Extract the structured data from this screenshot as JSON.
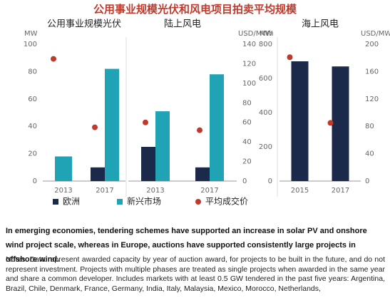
{
  "chart_data": {
    "type": "bar",
    "title": "公用事业规模光伏和风电项目拍卖平均规模",
    "series": [
      {
        "name": "欧洲",
        "color": "#1b2a4a",
        "kind": "bar"
      },
      {
        "name": "新兴市场",
        "color": "#1fa3b5",
        "kind": "bar"
      },
      {
        "name": "平均成交价",
        "color": "#c0392b",
        "kind": "dot",
        "axis": "y2"
      }
    ],
    "groups": [
      {
        "y_label": "MW",
        "ylim": [
          0,
          100
        ],
        "yticks": [
          0,
          20,
          40,
          60,
          80,
          100
        ],
        "y2_label": "USD/MWh",
        "y2lim": [
          0,
          140
        ],
        "y2ticks": [
          0,
          20,
          40,
          60,
          80,
          100,
          120,
          140
        ],
        "panels": [
          {
            "title": "公用事业规模光伏",
            "categories": [
              "2013",
              "2017"
            ],
            "values": [
              [
                null,
                10
              ],
              [
                18,
                82
              ],
              [
                125,
                55
              ]
            ]
          },
          {
            "title": "陆上风电",
            "categories": [
              "2013",
              "2017"
            ],
            "values": [
              [
                25,
                10
              ],
              [
                51,
                78
              ],
              [
                60,
                52
              ]
            ]
          }
        ]
      },
      {
        "y_label": "MW",
        "ylim": [
          0,
          800
        ],
        "yticks": [
          0,
          200,
          400,
          600,
          800
        ],
        "y2_label": "USD/MWh",
        "y2lim": [
          0,
          200
        ],
        "y2ticks": [
          0,
          40,
          80,
          120,
          160,
          200
        ],
        "panels": [
          {
            "title": "海上风电",
            "categories": [
              "2015",
              "2017"
            ],
            "values": [
              [
                700,
                670
              ],
              [
                null,
                null
              ],
              [
                181,
                85
              ]
            ]
          }
        ]
      }
    ]
  },
  "text": {
    "lead": "In emerging economies, tendering schemes have supported an increase in solar PV and onshore wind project scale, whereas in Europe, auctions have supported consistently large projects in offshore wind.",
    "notes": "Notes: Data represent awarded capacity by year of auction award, for projects to be built in the future, and do not represent investment. Projects with multiple phases are treated as single projects when awarded in the same year and share a common developer. Includes markets with at least 0.5 GW tendered in the past five years: Argentina, Brazil, Chile, Denmark, France, Germany, India, Italy, Malaysia, Mexico, Morocco, Netherlands,"
  }
}
